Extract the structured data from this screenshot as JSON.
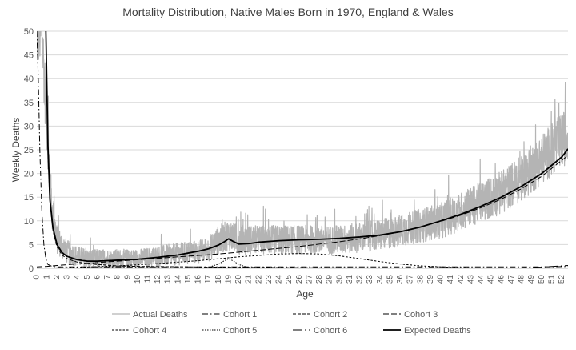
{
  "chart_data": {
    "type": "line",
    "title": "Mortality Distribution, Native Males Born in 1970, England & Wales",
    "xlabel": "Age",
    "ylabel": "Weekly Deaths",
    "xlim": [
      0,
      52.6
    ],
    "ylim": [
      0,
      50
    ],
    "x_ticks": [
      0,
      1,
      2,
      3,
      4,
      5,
      6,
      7,
      8,
      9,
      10,
      11,
      12,
      13,
      14,
      15,
      16,
      17,
      18,
      19,
      20,
      21,
      22,
      23,
      24,
      25,
      26,
      27,
      28,
      29,
      30,
      31,
      32,
      33,
      34,
      35,
      36,
      37,
      38,
      39,
      40,
      41,
      42,
      43,
      44,
      45,
      46,
      47,
      48,
      49,
      50,
      51,
      52
    ],
    "y_ticks": [
      0,
      5,
      10,
      15,
      20,
      25,
      30,
      35,
      40,
      45,
      50
    ],
    "grid": "horizontal",
    "legend_position": "bottom",
    "series": [
      {
        "name": "Actual Deaths",
        "style": "noisy",
        "color": "#b4b4b4",
        "x": [
          0,
          0.5,
          1,
          1.5,
          2,
          3,
          4,
          5,
          6,
          8,
          10,
          12,
          14,
          16,
          17,
          18,
          19,
          20,
          22,
          25,
          28,
          30,
          32,
          34,
          36,
          38,
          40,
          42,
          44,
          46,
          48,
          50,
          52,
          52.6
        ],
        "values": [
          50,
          50,
          30,
          12,
          6,
          3.5,
          2.5,
          2,
          2,
          2,
          2,
          2.5,
          3,
          3.5,
          4,
          6,
          7,
          6,
          6,
          6,
          6,
          6,
          6.5,
          7,
          8,
          9,
          10,
          12,
          14,
          16,
          19,
          23,
          27,
          28
        ]
      },
      {
        "name": "Cohort 1",
        "style": "dash-dot",
        "color": "#000000",
        "x": [
          0,
          0.15,
          0.3,
          0.5,
          0.7,
          0.9,
          1.1,
          1.5,
          2,
          3,
          5,
          10,
          20,
          30,
          40,
          45,
          50,
          52,
          52.6
        ],
        "values": [
          50,
          40,
          25,
          12,
          5,
          2,
          0.8,
          0.4,
          0.3,
          0.3,
          0.3,
          0.3,
          0.3,
          0.3,
          0.3,
          0.3,
          0.3,
          0.35,
          0.4
        ]
      },
      {
        "name": "Cohort 2",
        "style": "dash-med",
        "color": "#000000",
        "x": [
          0.9,
          1.0,
          1.1,
          1.3,
          1.6,
          2,
          2.5,
          3,
          4,
          5,
          6,
          8,
          10,
          15,
          20,
          30,
          40,
          52.6
        ],
        "values": [
          50,
          38,
          25,
          14,
          8,
          4.5,
          2.8,
          2,
          1.3,
          1.0,
          0.8,
          0.5,
          0.4,
          0.3,
          0.2,
          0.1,
          0.05,
          0
        ]
      },
      {
        "name": "Cohort 3",
        "style": "dash-long",
        "color": "#000000",
        "x": [
          0,
          1,
          2,
          4,
          6,
          8,
          10,
          12,
          14,
          16,
          18,
          20,
          22,
          24,
          26,
          28,
          30,
          32,
          34,
          36,
          38,
          40,
          42,
          44,
          46,
          48,
          50,
          52,
          52.6
        ],
        "values": [
          0.3,
          0.4,
          0.6,
          0.9,
          1.2,
          1.5,
          1.8,
          2.1,
          2.4,
          2.7,
          3,
          3.4,
          3.8,
          4.2,
          4.6,
          5.1,
          5.6,
          6.2,
          6.9,
          7.7,
          8.7,
          9.9,
          11.2,
          12.8,
          14.6,
          16.8,
          19.4,
          22.8,
          23.8
        ]
      },
      {
        "name": "Cohort 4",
        "style": "dash-short",
        "color": "#000000",
        "x": [
          0,
          4,
          8,
          12,
          16,
          18,
          20,
          22,
          24,
          26,
          28,
          30,
          32,
          34,
          36,
          38,
          40,
          42,
          44,
          46,
          48,
          50,
          52.6
        ],
        "values": [
          0,
          0.2,
          0.5,
          1,
          1.6,
          2,
          2.4,
          2.7,
          3,
          3.1,
          3,
          2.6,
          2,
          1.4,
          0.9,
          0.5,
          0.3,
          0.15,
          0.07,
          0.03,
          0.01,
          0,
          0
        ]
      },
      {
        "name": "Cohort 5",
        "style": "dot",
        "color": "#000000",
        "x": [
          0,
          16,
          17,
          18,
          18.5,
          19,
          19.5,
          20,
          21,
          52.6
        ],
        "values": [
          0,
          0,
          0.2,
          0.9,
          1.5,
          2.0,
          1.5,
          0.8,
          0.1,
          0
        ]
      },
      {
        "name": "Cohort 6",
        "style": "long-dash-dot",
        "color": "#000000",
        "x": [
          0,
          30,
          40,
          45,
          48,
          50,
          52,
          52.6
        ],
        "values": [
          0,
          0,
          0,
          0.02,
          0.1,
          0.25,
          0.5,
          0.6
        ]
      },
      {
        "name": "Expected Deaths",
        "style": "solid-bold",
        "color": "#000000",
        "x": [
          0.9,
          1.0,
          1.1,
          1.3,
          1.6,
          2,
          2.5,
          3,
          4,
          5,
          6,
          7,
          8,
          10,
          12,
          14,
          16,
          17,
          18,
          18.5,
          19,
          19.5,
          20,
          21,
          22,
          24,
          26,
          28,
          30,
          32,
          34,
          36,
          38,
          40,
          42,
          44,
          46,
          48,
          50,
          52,
          52.6
        ],
        "values": [
          50,
          38,
          26,
          14.5,
          8.5,
          5,
          3.3,
          2.5,
          1.8,
          1.5,
          1.5,
          1.6,
          1.7,
          1.9,
          2.3,
          2.8,
          3.6,
          4.1,
          4.9,
          5.5,
          6.2,
          5.6,
          5.1,
          5.2,
          5.5,
          5.8,
          6,
          6.1,
          6.3,
          6.6,
          7,
          7.7,
          8.7,
          10,
          11.4,
          13.1,
          15,
          17.3,
          20,
          23.5,
          25.2
        ]
      }
    ]
  }
}
